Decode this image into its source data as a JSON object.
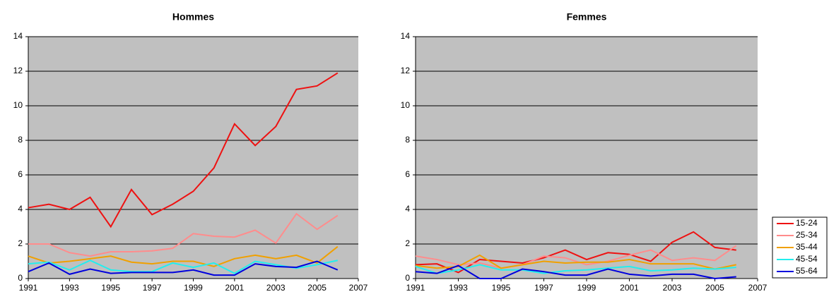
{
  "legend": [
    {
      "name": "15-24",
      "color": "#ee1111"
    },
    {
      "name": "25-34",
      "color": "#ff8c8c"
    },
    {
      "name": "35-44",
      "color": "#f0a000"
    },
    {
      "name": "45-54",
      "color": "#22eeee"
    },
    {
      "name": "55-64",
      "color": "#0000dd"
    }
  ],
  "chart_data": [
    {
      "type": "line",
      "title": "Hommes",
      "x": [
        1991,
        1992,
        1993,
        1994,
        1995,
        1996,
        1997,
        1998,
        1999,
        2000,
        2001,
        2002,
        2003,
        2004,
        2005,
        2006
      ],
      "xlim": [
        1991,
        2007
      ],
      "xticks": [
        1991,
        1993,
        1995,
        1997,
        1999,
        2001,
        2003,
        2005,
        2007
      ],
      "ylim": [
        0,
        14
      ],
      "yticks": [
        0,
        2,
        4,
        6,
        8,
        10,
        12,
        14
      ],
      "grid": true,
      "series": [
        {
          "values": [
            4.1,
            4.3,
            4.0,
            4.7,
            3.0,
            5.15,
            3.7,
            4.3,
            5.05,
            6.4,
            8.95,
            7.7,
            8.8,
            10.95,
            11.15,
            11.9
          ]
        },
        {
          "values": [
            2.0,
            2.0,
            1.5,
            1.3,
            1.55,
            1.55,
            1.6,
            1.75,
            2.6,
            2.45,
            2.4,
            2.8,
            2.05,
            3.75,
            2.85,
            3.65
          ]
        },
        {
          "values": [
            1.3,
            0.9,
            1.0,
            1.15,
            1.3,
            0.95,
            0.85,
            1.0,
            1.0,
            0.7,
            1.15,
            1.35,
            1.15,
            1.35,
            0.9,
            1.85
          ]
        },
        {
          "values": [
            0.85,
            0.95,
            0.5,
            1.05,
            0.5,
            0.4,
            0.4,
            0.9,
            0.65,
            0.9,
            0.3,
            1.0,
            0.8,
            0.6,
            0.8,
            1.05
          ]
        },
        {
          "values": [
            0.4,
            0.9,
            0.25,
            0.55,
            0.3,
            0.35,
            0.35,
            0.35,
            0.5,
            0.2,
            0.2,
            0.85,
            0.7,
            0.65,
            1.0,
            0.5
          ]
        }
      ]
    },
    {
      "type": "line",
      "title": "Femmes",
      "x": [
        1991,
        1992,
        1993,
        1994,
        1995,
        1996,
        1997,
        1998,
        1999,
        2000,
        2001,
        2002,
        2003,
        2004,
        2005,
        2006
      ],
      "xlim": [
        1991,
        2007
      ],
      "xticks": [
        1991,
        1993,
        1995,
        1997,
        1999,
        2001,
        2003,
        2005,
        2007
      ],
      "ylim": [
        0,
        14
      ],
      "yticks": [
        0,
        2,
        4,
        6,
        8,
        10,
        12,
        14
      ],
      "grid": true,
      "series": [
        {
          "values": [
            0.8,
            0.85,
            0.35,
            1.1,
            1.0,
            0.9,
            1.2,
            1.65,
            1.1,
            1.5,
            1.4,
            1.0,
            2.1,
            2.7,
            1.8,
            1.65
          ]
        },
        {
          "values": [
            1.3,
            1.1,
            0.8,
            0.9,
            0.6,
            0.8,
            1.3,
            1.2,
            0.8,
            1.0,
            1.35,
            1.65,
            1.05,
            1.2,
            1.05,
            1.9
          ]
        },
        {
          "values": [
            0.75,
            0.6,
            0.7,
            1.35,
            0.6,
            0.8,
            1.0,
            0.9,
            0.95,
            0.95,
            1.1,
            0.85,
            0.85,
            0.85,
            0.55,
            0.8
          ]
        },
        {
          "values": [
            0.7,
            0.3,
            0.5,
            0.8,
            0.5,
            0.5,
            0.3,
            0.45,
            0.5,
            0.6,
            0.7,
            0.45,
            0.5,
            0.6,
            0.55,
            0.65
          ]
        },
        {
          "values": [
            0.4,
            0.3,
            0.75,
            0.0,
            0.0,
            0.55,
            0.4,
            0.2,
            0.2,
            0.55,
            0.25,
            0.15,
            0.25,
            0.25,
            0.0,
            0.1
          ]
        }
      ]
    }
  ]
}
